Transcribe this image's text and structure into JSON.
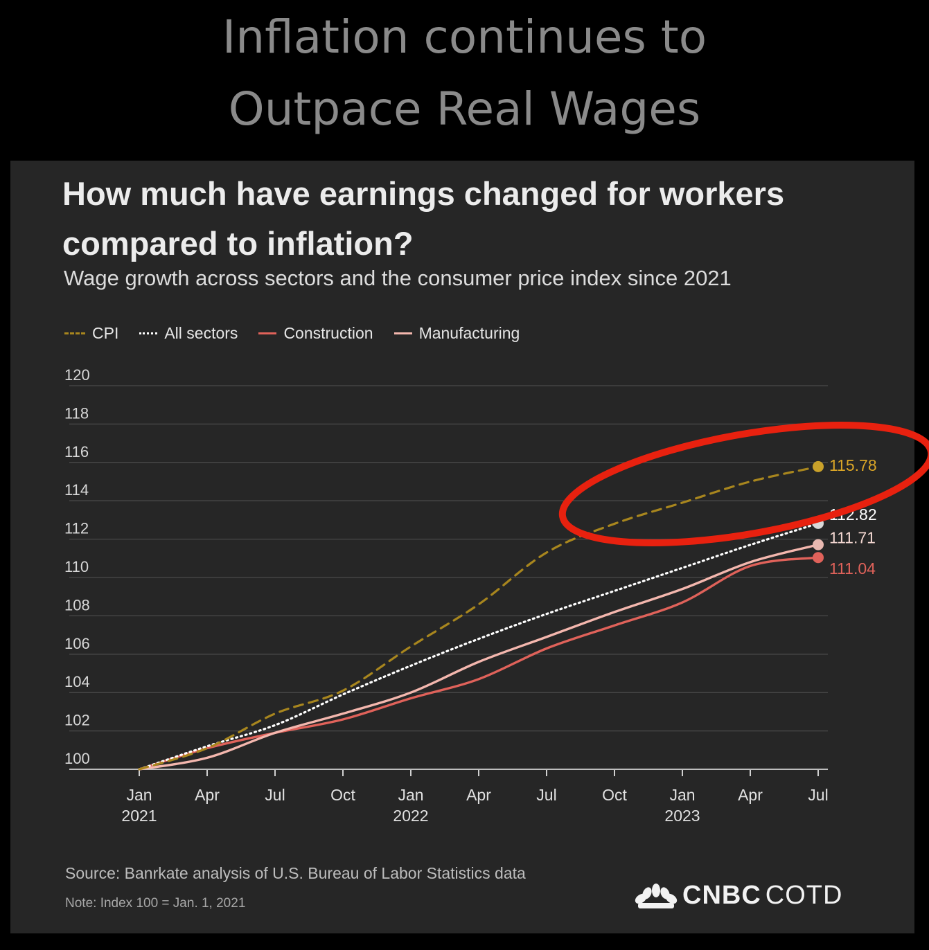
{
  "banner": {
    "line1": "Inflation continues to",
    "line2": "Outpace Real Wages"
  },
  "card": {
    "title": "How much have earnings changed for workers compared to inflation?",
    "subtitle": "Wage growth across sectors and the consumer price index since 2021",
    "source": "Source: Banrkate analysis of U.S. Bureau of Labor Statistics data",
    "note": "Note: Index 100 = Jan. 1, 2021",
    "logo_bold": "CNBC",
    "logo_thin": "COTD"
  },
  "colors": {
    "cpi": "#a8861e",
    "cpi_label": "#d9a527",
    "all_sectors": "#ffffff",
    "construction": "#e0625a",
    "manufacturing": "#f4b7ae",
    "highlight": "#e8210f",
    "grid": "#4a4a4a"
  },
  "chart_data": {
    "type": "line",
    "title": "How much have earnings changed for workers compared to inflation?",
    "subtitle": "Wage growth across sectors and the consumer price index since 2021",
    "ylim": [
      100,
      120
    ],
    "yticks": [
      "100",
      "102",
      "104",
      "106",
      "108",
      "110",
      "112",
      "114",
      "116",
      "118",
      "120"
    ],
    "x_ticks": [
      {
        "month": "Jan",
        "year": "2021"
      },
      {
        "month": "Apr",
        "year": ""
      },
      {
        "month": "Jul",
        "year": ""
      },
      {
        "month": "Oct",
        "year": ""
      },
      {
        "month": "Jan",
        "year": "2022"
      },
      {
        "month": "Apr",
        "year": ""
      },
      {
        "month": "Jul",
        "year": ""
      },
      {
        "month": "Oct",
        "year": ""
      },
      {
        "month": "Jan",
        "year": "2023"
      },
      {
        "month": "Apr",
        "year": ""
      },
      {
        "month": "Jul",
        "year": ""
      }
    ],
    "x_index": [
      0,
      1,
      2,
      3,
      4,
      5,
      6,
      7,
      8,
      9,
      10
    ],
    "series": [
      {
        "name": "CPI",
        "style": "dashed",
        "values": [
          100,
          101.1,
          102.9,
          104.1,
          106.4,
          108.6,
          111.3,
          112.8,
          113.9,
          115.0,
          115.78
        ],
        "end_label": "115.78"
      },
      {
        "name": "All sectors",
        "style": "dotted",
        "values": [
          100,
          101.2,
          102.3,
          103.9,
          105.4,
          106.8,
          108.1,
          109.3,
          110.5,
          111.7,
          112.82
        ],
        "end_label": "112.82"
      },
      {
        "name": "Construction",
        "style": "solid",
        "values": [
          100,
          101.1,
          101.9,
          102.6,
          103.7,
          104.7,
          106.3,
          107.5,
          108.7,
          110.6,
          111.04
        ],
        "end_label": "111.04"
      },
      {
        "name": "Manufacturing",
        "style": "solid",
        "values": [
          100,
          100.6,
          101.9,
          102.9,
          104.0,
          105.6,
          106.9,
          108.2,
          109.4,
          110.8,
          111.71
        ],
        "end_label": "111.71"
      }
    ],
    "legend": [
      "CPI",
      "All sectors",
      "Construction",
      "Manufacturing"
    ],
    "legend_position": "top-left",
    "annotation": "red hand-drawn ellipse around CPI line end"
  }
}
